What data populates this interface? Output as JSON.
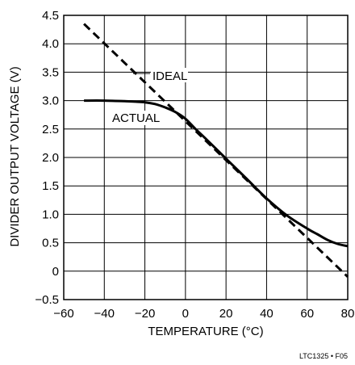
{
  "chart_data": {
    "type": "line",
    "title": "",
    "xlabel": "TEMPERATURE (°C)",
    "ylabel": "DIVIDER OUTPUT VOLTAGE (V)",
    "xlim": [
      -60,
      80
    ],
    "ylim": [
      -0.5,
      4.5
    ],
    "x_ticks": [
      -60,
      -40,
      -20,
      0,
      20,
      40,
      60,
      80
    ],
    "x_tick_labels": [
      "−60",
      "−40",
      "−20",
      "0",
      "20",
      "40",
      "60",
      "80"
    ],
    "y_ticks": [
      -0.5,
      0,
      0.5,
      1.0,
      1.5,
      2.0,
      2.5,
      3.0,
      3.5,
      4.0,
      4.5
    ],
    "y_tick_labels": [
      "−0.5",
      "0",
      "0.5",
      "1.0",
      "1.5",
      "2.0",
      "2.5",
      "3.0",
      "3.5",
      "4.0",
      "4.5"
    ],
    "grid": true,
    "series": [
      {
        "name": "IDEAL",
        "style": "dashed",
        "x": [
          -50,
          80
        ],
        "y": [
          4.35,
          -0.1
        ]
      },
      {
        "name": "ACTUAL",
        "style": "solid",
        "x": [
          -50,
          -40,
          -30,
          -20,
          -15,
          -10,
          -5,
          0,
          5,
          10,
          20,
          30,
          40,
          50,
          60,
          65,
          70,
          75,
          80
        ],
        "y": [
          3.0,
          3.0,
          2.99,
          2.97,
          2.94,
          2.88,
          2.8,
          2.68,
          2.5,
          2.33,
          1.98,
          1.63,
          1.28,
          0.98,
          0.75,
          0.65,
          0.55,
          0.48,
          0.44
        ]
      }
    ],
    "annotations": [
      {
        "text": "IDEAL"
      },
      {
        "text": "ACTUAL"
      }
    ],
    "figure_id": "LTC1325 • F05"
  }
}
